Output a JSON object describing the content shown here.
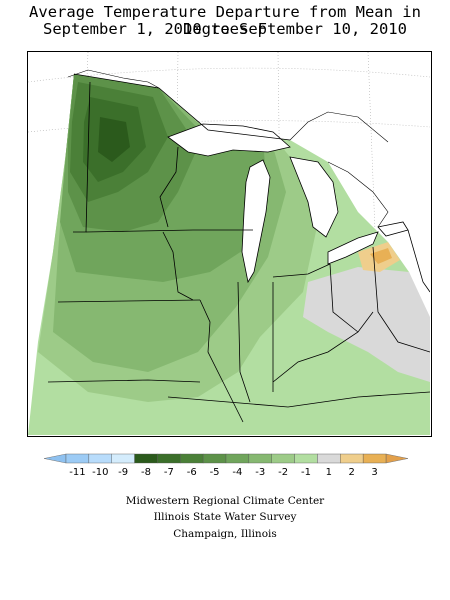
{
  "title": {
    "line1": "Average Temperature Departure from Mean in Degrees F",
    "line2": "September 1, 2010 to September 10, 2010"
  },
  "legend": {
    "ticks": [
      "-11",
      "-10",
      "-9",
      "-8",
      "-7",
      "-6",
      "-5",
      "-4",
      "-3",
      "-2",
      "-1",
      "1",
      "2",
      "3"
    ],
    "colors": [
      "#9ccbf5",
      "#b8dcfb",
      "#d4ecfc",
      "#2b5a1c",
      "#3b6f2a",
      "#4b8038",
      "#5d9249",
      "#70a55c",
      "#86b871",
      "#9dcb88",
      "#b2dea1",
      "#d9d9d9",
      "#efce8c",
      "#e8b055"
    ],
    "low_arrow_color": "#8ec1f0",
    "high_arrow_color": "#e3a04a"
  },
  "credits": {
    "line1": "Midwestern Regional Climate Center",
    "line2": "Illinois State Water Survey",
    "line3": "Champaign, Illinois"
  },
  "map": {
    "colors": {
      "background": "#ffffff",
      "lake": "#ffffff",
      "boundary": "#000000",
      "grid": "#b0b0b0"
    }
  }
}
